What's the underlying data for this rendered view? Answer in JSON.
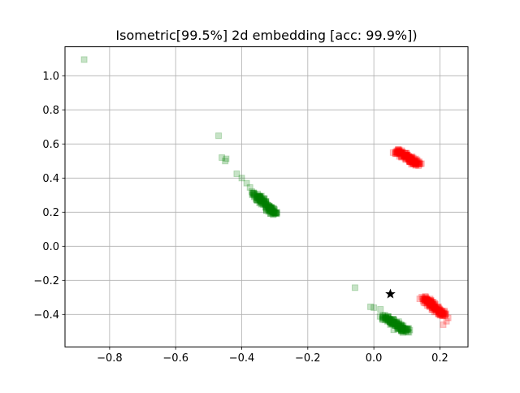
{
  "chart_data": {
    "type": "scatter",
    "title": "Isometric[99.5%] 2d embedding [acc: 99.9%])",
    "xlabel": "",
    "ylabel": "",
    "xlim": [
      -0.935,
      0.285
    ],
    "ylim": [
      -0.59,
      1.17
    ],
    "grid": true,
    "x_ticks": [
      -0.8,
      -0.6,
      -0.4,
      -0.2,
      0.0,
      0.2
    ],
    "x_tick_labels": [
      "−0.8",
      "−0.6",
      "−0.4",
      "−0.2",
      "0.0",
      "0.2"
    ],
    "y_ticks": [
      -0.4,
      -0.2,
      0.0,
      0.2,
      0.4,
      0.6,
      0.8,
      1.0
    ],
    "y_tick_labels": [
      "−0.4",
      "−0.2",
      "0.0",
      "0.2",
      "0.4",
      "0.6",
      "0.8",
      "1.0"
    ],
    "series": [
      {
        "marker": "square",
        "color": "#008000",
        "alpha": 0.22,
        "clusters": [
          {
            "from": [
              -0.36,
              0.31
            ],
            "to": [
              -0.3,
              0.19
            ],
            "count": 130,
            "spread": 0.012
          },
          {
            "from": [
              0.03,
              -0.41
            ],
            "to": [
              0.1,
              -0.5
            ],
            "count": 130,
            "spread": 0.012
          }
        ],
        "points": [
          [
            -0.877,
            1.095
          ],
          [
            -0.47,
            0.648
          ],
          [
            -0.46,
            0.52
          ],
          [
            -0.447,
            0.513
          ],
          [
            -0.45,
            0.5
          ],
          [
            -0.415,
            0.425
          ],
          [
            -0.4,
            0.4
          ],
          [
            -0.385,
            0.37
          ],
          [
            -0.375,
            0.345
          ],
          [
            -0.057,
            -0.243
          ],
          [
            -0.01,
            -0.355
          ],
          [
            0.0,
            -0.36
          ],
          [
            0.02,
            -0.37
          ],
          [
            0.06,
            -0.49
          ],
          [
            0.09,
            -0.5
          ]
        ]
      },
      {
        "marker": "square",
        "color": "#ff0000",
        "alpha": 0.22,
        "clusters": [
          {
            "from": [
              0.07,
              0.56
            ],
            "to": [
              0.135,
              0.48
            ],
            "count": 130,
            "spread": 0.012
          },
          {
            "from": [
              0.15,
              -0.3
            ],
            "to": [
              0.215,
              -0.41
            ],
            "count": 130,
            "spread": 0.012
          }
        ],
        "points": [
          [
            0.22,
            -0.44
          ],
          [
            0.21,
            -0.46
          ],
          [
            0.225,
            -0.42
          ]
        ]
      },
      {
        "marker": "star",
        "color": "#000000",
        "alpha": 1,
        "points": [
          [
            0.05,
            -0.28
          ]
        ]
      }
    ]
  }
}
